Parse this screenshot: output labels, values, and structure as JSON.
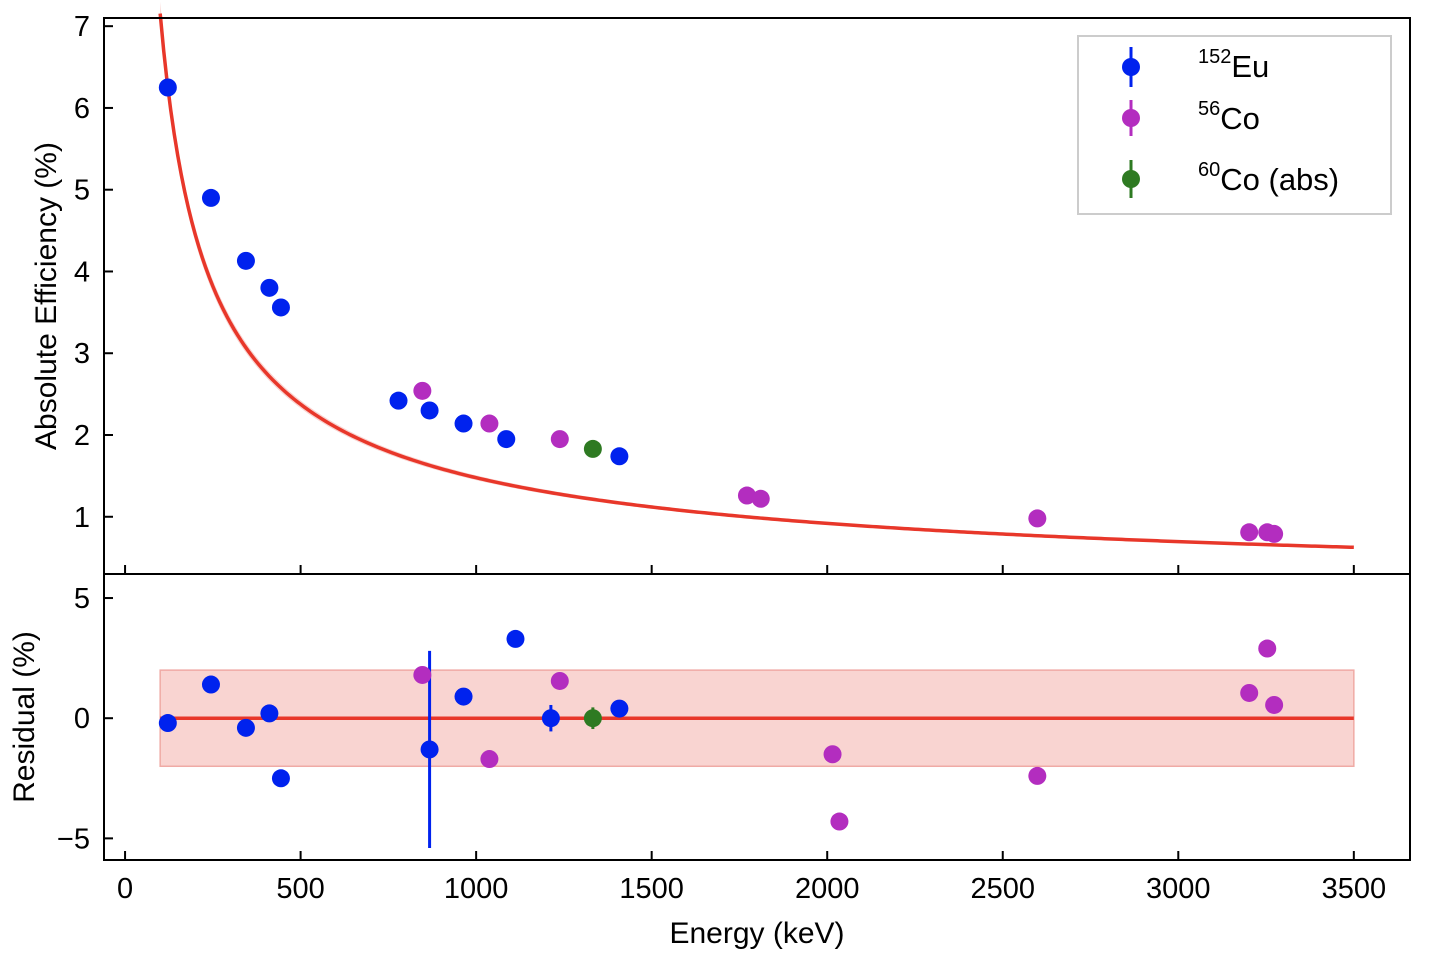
{
  "colors": {
    "eu152": "#0022ee",
    "co56": "#b32dbf",
    "co60": "#2e7a22",
    "fit": "#e8372a",
    "band": "#f7c9c6"
  },
  "legend": {
    "placement": "top-right",
    "items": [
      {
        "sup": "152",
        "label": "Eu",
        "color_key": "eu152"
      },
      {
        "sup": "56",
        "label": "Co",
        "color_key": "co56"
      },
      {
        "sup": "60",
        "label": "Co (abs)",
        "color_key": "co60"
      }
    ]
  },
  "chart_data": [
    {
      "type": "scatter",
      "ylabel": "Absolute Efficiency (%)",
      "xlabel": "",
      "xlim": [
        -60,
        3660
      ],
      "ylim": [
        0.3,
        7.1
      ],
      "y_ticks": [
        "1",
        "2",
        "3",
        "4",
        "5",
        "6",
        "7"
      ],
      "fit_curve": {
        "name": "fit",
        "amplitude_pct": 6.25,
        "ref_energy_kev": 121.8,
        "exponent": 0.685,
        "x_range": [
          100,
          3500
        ],
        "color_key": "fit"
      },
      "series": [
        {
          "name": "152Eu",
          "color_key": "eu152",
          "points": [
            {
              "x": 121.8,
              "y": 6.25
            },
            {
              "x": 244.7,
              "y": 4.9
            },
            {
              "x": 344.3,
              "y": 4.13
            },
            {
              "x": 411.1,
              "y": 3.8
            },
            {
              "x": 444.0,
              "y": 3.56
            },
            {
              "x": 778.9,
              "y": 2.42
            },
            {
              "x": 867.4,
              "y": 2.3
            },
            {
              "x": 964.1,
              "y": 2.14
            },
            {
              "x": 1085.8,
              "y": 1.95
            },
            {
              "x": 1408.0,
              "y": 1.74
            }
          ]
        },
        {
          "name": "56Co",
          "color_key": "co56",
          "points": [
            {
              "x": 846.8,
              "y": 2.54
            },
            {
              "x": 1037.8,
              "y": 2.14
            },
            {
              "x": 1238.3,
              "y": 1.95
            },
            {
              "x": 1771.4,
              "y": 1.26
            },
            {
              "x": 1810.7,
              "y": 1.22
            },
            {
              "x": 2598.5,
              "y": 0.98
            },
            {
              "x": 3202.0,
              "y": 0.81
            },
            {
              "x": 3253.4,
              "y": 0.81
            },
            {
              "x": 3273.0,
              "y": 0.79
            }
          ]
        },
        {
          "name": "60Co (abs)",
          "color_key": "co60",
          "points": [
            {
              "x": 1332.5,
              "y": 1.83
            }
          ]
        }
      ]
    },
    {
      "type": "scatter",
      "xlabel": "Energy (keV)",
      "ylabel": "Residual (%)",
      "xlim": [
        -60,
        3660
      ],
      "ylim": [
        -5.9,
        6.0
      ],
      "x_ticks": [
        "0",
        "500",
        "1000",
        "1500",
        "2000",
        "2500",
        "3000",
        "3500"
      ],
      "y_ticks": [
        "−5",
        "0",
        "5"
      ],
      "zero_line": {
        "y": 0,
        "color_key": "fit"
      },
      "band": {
        "y_range": [
          -2,
          2
        ],
        "x_range": [
          100,
          3500
        ],
        "color_key": "band"
      },
      "series": [
        {
          "name": "152Eu",
          "color_key": "eu152",
          "points": [
            {
              "x": 121.8,
              "y": -0.2
            },
            {
              "x": 244.7,
              "y": 1.4
            },
            {
              "x": 344.3,
              "y": -0.4
            },
            {
              "x": 411.1,
              "y": 0.2
            },
            {
              "x": 444.0,
              "y": -2.5
            },
            {
              "x": 867.4,
              "y": -1.3,
              "err": 4.1
            },
            {
              "x": 964.1,
              "y": 0.9
            },
            {
              "x": 1112.1,
              "y": 3.3
            },
            {
              "x": 1212.9,
              "y": 0.0,
              "err": 0.55
            },
            {
              "x": 1408.0,
              "y": 0.4
            }
          ]
        },
        {
          "name": "56Co",
          "color_key": "co56",
          "points": [
            {
              "x": 846.8,
              "y": 1.8
            },
            {
              "x": 1037.8,
              "y": -1.7
            },
            {
              "x": 1238.3,
              "y": 1.55
            },
            {
              "x": 2015.2,
              "y": -1.5
            },
            {
              "x": 2034.8,
              "y": -4.3
            },
            {
              "x": 2598.5,
              "y": -2.4
            },
            {
              "x": 3202.0,
              "y": 1.05
            },
            {
              "x": 3253.4,
              "y": 2.9
            },
            {
              "x": 3273.0,
              "y": 0.55
            }
          ]
        },
        {
          "name": "60Co (abs)",
          "color_key": "co60",
          "points": [
            {
              "x": 1332.5,
              "y": 0.0,
              "err": 0.45
            }
          ]
        }
      ]
    }
  ]
}
